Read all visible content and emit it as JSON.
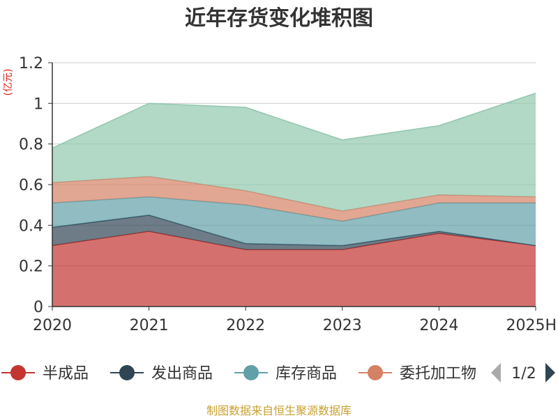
{
  "chart_data": {
    "type": "area",
    "stacked": true,
    "title": "近年存货变化堆积图",
    "unit": "(亿元)",
    "categories": [
      "2020",
      "2021",
      "2022",
      "2023",
      "2024",
      "2025H"
    ],
    "ylim": [
      0,
      1.2
    ],
    "yticks": [
      0,
      0.2,
      0.4,
      0.6,
      0.8,
      1,
      1.2
    ],
    "grid": true,
    "legend_position": "bottom",
    "series": [
      {
        "name": "半成品",
        "color": "#c23531",
        "values": [
          0.3,
          0.37,
          0.28,
          0.28,
          0.36,
          0.3
        ]
      },
      {
        "name": "发出商品",
        "color": "#2f4554",
        "values": [
          0.09,
          0.08,
          0.03,
          0.02,
          0.01,
          0.0
        ]
      },
      {
        "name": "库存商品",
        "color": "#61a0a8",
        "values": [
          0.12,
          0.09,
          0.19,
          0.12,
          0.14,
          0.21
        ]
      },
      {
        "name": "委托加工物",
        "color": "#d48265",
        "values": [
          0.1,
          0.1,
          0.07,
          0.05,
          0.04,
          0.03
        ]
      },
      {
        "name": "",
        "color": "#91c7ae",
        "values": [
          0.17,
          0.36,
          0.41,
          0.35,
          0.34,
          0.51
        ]
      }
    ]
  },
  "legend": {
    "page_indicator": "1/2",
    "prev_icon": "triangle-left-icon",
    "next_icon": "triangle-right-icon"
  },
  "source": "制图数据来自恒生聚源数据库"
}
